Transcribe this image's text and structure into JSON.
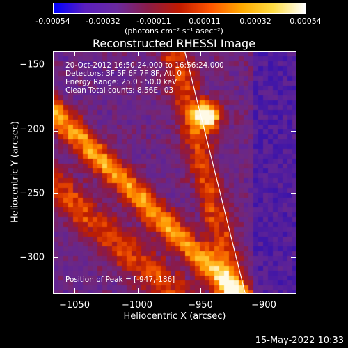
{
  "colorbar": {
    "ticks": [
      "-0.00054",
      "-0.00032",
      "-0.00011",
      "0.00011",
      "0.00032",
      "0.00054"
    ],
    "units_label": "(photons cm⁻² s⁻¹ asec⁻²)",
    "colormap": [
      "#0000ff",
      "#5a1fbf",
      "#6a2aa0",
      "#8a1c48",
      "#c11a00",
      "#ff5500",
      "#ffaa00",
      "#ffdd44",
      "#ffffff"
    ]
  },
  "title": "Reconstructed RHESSI Image",
  "annotations": {
    "time_range": "20-Oct-2012 16:50:24.000 to 16:56:24.000",
    "detectors": "Detectors: 3F 5F 6F 7F 8F, Att 0",
    "energy": "Energy Range: 25.0 - 50.0 keV",
    "clean": "Clean    Total counts: 8.56E+03",
    "peak": "Position of Peak = [-947,-186]"
  },
  "chart_data": {
    "type": "heatmap",
    "title": "Reconstructed RHESSI Image",
    "xlabel": "Heliocentric X (arcsec)",
    "ylabel": "Heliocentric Y (arcsec)",
    "xlim": [
      -1067,
      -874
    ],
    "ylim": [
      -329,
      -137
    ],
    "xticks": [
      -1050,
      -1000,
      -950,
      -900
    ],
    "yticks": [
      -150,
      -200,
      -250,
      -300
    ],
    "xtick_labels": [
      "−1050",
      "−1000",
      "−950",
      "−900"
    ],
    "ytick_labels": [
      "−150",
      "−200",
      "−250",
      "−300"
    ],
    "peak_position": [
      -947,
      -186
    ],
    "limb_line": [
      [
        -963,
        -137
      ],
      [
        -915,
        -329
      ]
    ],
    "color_range": [
      -0.00054,
      0.00054
    ]
  },
  "timestamp": "15-May-2022 10:33"
}
